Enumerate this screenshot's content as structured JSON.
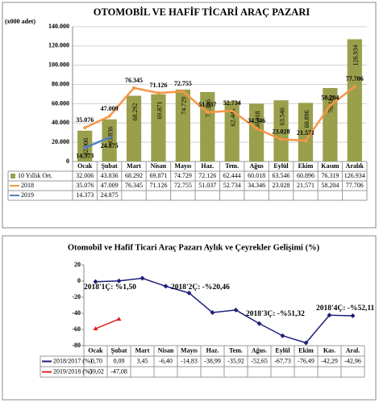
{
  "chart_data": [
    {
      "type": "bar",
      "title": "OTOMOBİL VE HAFİF TİCARİ ARAÇ PAZARI",
      "y_label": "(x000 adet)",
      "categories": [
        "Ocak",
        "Şubat",
        "Mart",
        "Nisan",
        "Mayıs",
        "Haz.",
        "Tem.",
        "Ağus",
        "Eylül",
        "Ekim",
        "Kasım",
        "Aralık"
      ],
      "series": [
        {
          "name": "10 Yıllık Ort.",
          "type": "bar",
          "color": "#9a9f4b",
          "values": [
            32.006,
            43.836,
            68.292,
            69.871,
            74.729,
            72.126,
            62.444,
            60.018,
            63.546,
            60.896,
            76.319,
            126.934
          ]
        },
        {
          "name": "2018",
          "type": "line",
          "color": "#f79646",
          "values": [
            35.076,
            47.009,
            76.345,
            71.126,
            72.755,
            51.037,
            52.734,
            34.346,
            23.028,
            21.571,
            58.204,
            77.706
          ]
        },
        {
          "name": "2019",
          "type": "line",
          "color": "#4f81bd",
          "values": [
            14.373,
            24.875,
            null,
            null,
            null,
            null,
            null,
            null,
            null,
            null,
            null,
            null
          ]
        }
      ],
      "ylim": [
        0,
        140
      ],
      "yticks": [
        0,
        {
          "value": 20,
          "label": "20.000"
        },
        {
          "value": 40,
          "label": "40.000"
        },
        {
          "value": 60,
          "label": "60.000"
        },
        {
          "value": 80,
          "label": "80.000"
        },
        {
          "value": 100,
          "label": "100.000"
        },
        {
          "value": 120,
          "label": "120.000"
        },
        {
          "value": 140,
          "label": "140.000"
        }
      ],
      "grid": true
    },
    {
      "type": "line",
      "title": "Otomobil ve Hafif Ticari Araç Pazarı Aylık ve Çeyrekler Gelişimi (%)",
      "categories": [
        "Ocak",
        "Şubat",
        "Mart",
        "Nisan",
        "Mayıs",
        "Haz.",
        "Tem.",
        "Ağus.",
        "Eylül",
        "Ekim",
        "Kas.",
        "Aral."
      ],
      "series": [
        {
          "name": "2018/2017 (%)",
          "color": "#1f1f7a",
          "values": [
            -0.7,
            0.09,
            3.45,
            -6.4,
            -14.83,
            -38.99,
            -35.92,
            -52.65,
            -67.73,
            -76.49,
            -42.29,
            -42.96
          ],
          "value_labels": [
            "-0,70",
            "0,09",
            "3,45",
            "-6,40",
            "-14,83",
            "-38,99",
            "-35,92",
            "-52,65",
            "-67,73",
            "-76,49",
            "-42,29",
            "-42,96"
          ]
        },
        {
          "name": "2019/2018 (%)",
          "color": "#e02020",
          "values": [
            -59.02,
            -47.08,
            null,
            null,
            null,
            null,
            null,
            null,
            null,
            null,
            null,
            null
          ],
          "value_labels": [
            "-59,02",
            "-47,08",
            null,
            null,
            null,
            null,
            null,
            null,
            null,
            null,
            null,
            null
          ]
        }
      ],
      "annotations": [
        "2018'1Ç: %1,50",
        "2018'2Ç: -%20,46",
        "2018'3Ç: -%51,32",
        "2018'4Ç: -%52,11"
      ],
      "ylim": [
        -80,
        20
      ],
      "yticks": [
        20,
        0,
        -20,
        -40,
        -60,
        -80
      ],
      "grid": false
    }
  ]
}
